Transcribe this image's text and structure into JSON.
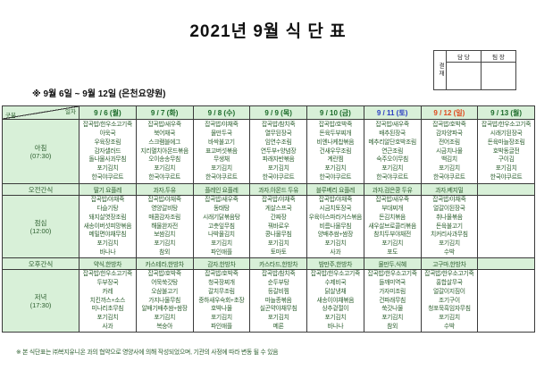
{
  "title": "2021년 9월 식 단 표",
  "subtitle": "※ 9월 6일 ~ 9월 12일 (은천요양원)",
  "approval": {
    "stamp_label": "결재",
    "col1": "담 당",
    "col2": "팀 장"
  },
  "corner": {
    "top": "일자",
    "bottom": "구분"
  },
  "row_labels": {
    "breakfast1": "아침",
    "breakfast2": "(07:30)",
    "am_snack": "오전간식",
    "lunch1": "점심",
    "lunch2": "(12:00)",
    "pm_snack": "오후간식",
    "dinner1": "저녁",
    "dinner2": "(17:30)"
  },
  "colors": {
    "table_tint_green": "#d8f0d8",
    "menu_text_green": "#2e6030",
    "weekday_date": "#1c6b2a",
    "saturday_date": "#2b3fc4",
    "sunday_date": "#e04a1e"
  },
  "days": [
    {
      "date": "9 / 6 (월)",
      "date_color": "#1c6b2a",
      "breakfast": [
        "잡곡밥/한우소고기죽",
        "아욱국",
        "우육장조림",
        "감자샐러드",
        "돌나물사과무침",
        "포기김치",
        "한국야쿠르트"
      ],
      "am_snack": "딸기 요플레",
      "lunch": [
        "잡곡밥/야채죽",
        "다슬기탕",
        "돼지살엿장조림",
        "새송이버섯피망볶음",
        "메밀면야채무침",
        "포기김치",
        "바나나"
      ],
      "pm_snack": "약식,한방차",
      "dinner": [
        "잡곡밥/한우소고기죽",
        "두부장국",
        "카레",
        "치킨까스+소스",
        "미나리초무침",
        "포기김치",
        "사과"
      ]
    },
    {
      "date": "9 / 7 (화)",
      "date_color": "#1c6b2a",
      "breakfast": [
        "잡곡밥/새우죽",
        "북어채국",
        "스크램블에그",
        "지리멸치아몬드볶음",
        "오이송송무침",
        "포기김치",
        "한국야쿠르트"
      ],
      "am_snack": "과자,두유",
      "lunch": [
        "잡곡밥/야채죽",
        "영양갈비탕",
        "매콤감자조림",
        "해물완자전",
        "보쌈김치",
        "포기김치",
        "참외"
      ],
      "pm_snack": "카스테라,한방차",
      "dinner": [
        "잡곡밥/호박죽",
        "어묵쑥갓탕",
        "오삼불고기",
        "가지나물무침",
        "알배기배추쌈+쌈장",
        "포기김치",
        "복숭아"
      ]
    },
    {
      "date": "9 / 8 (수)",
      "date_color": "#1c6b2a",
      "breakfast": [
        "잡곡밥/야채죽",
        "물만두국",
        "바싹불고기",
        "표고버섯볶음",
        "무생채",
        "포기김치",
        "한국야쿠르트"
      ],
      "am_snack": "플레인 요플레",
      "lunch": [
        "잡곡밥/새우죽",
        "동태탕",
        "시래기닭볶음탕",
        "고춧잎무침",
        "나박물김치",
        "포기김치",
        "파인애플"
      ],
      "pm_snack": "감자,한방차",
      "dinner": [
        "잡곡밥/호박죽",
        "청국장찌개",
        "갈치무조림",
        "중하새우숙회+초장",
        "호박나물",
        "포기김치",
        "파인애플"
      ]
    },
    {
      "date": "9 / 9 (목)",
      "date_color": "#1c6b2a",
      "breakfast": [
        "잡곡밥/참치죽",
        "열무된장국",
        "임연수조림",
        "연두부+양념장",
        "파래자반볶음",
        "포기김치",
        "한국야쿠르트"
      ],
      "am_snack": "과자,아몬드 두유",
      "lunch": [
        "잡곡밥/야채죽",
        "게살스프국",
        "간짜장",
        "꿔바로우",
        "콩나물무침",
        "포기김치",
        "토마토"
      ],
      "pm_snack": "카스타드,한방차",
      "dinner": [
        "잡곡밥/참치죽",
        "순두부탕",
        "등갈비찜",
        "마늘종볶음",
        "실곤약야채무침",
        "포기김치",
        "메론"
      ]
    },
    {
      "date": "9 / 10 (금)",
      "date_color": "#1c6b2a",
      "breakfast": [
        "잡곡밥/호박죽",
        "돈육두부찌개",
        "비엔나케찹볶음",
        "건새우무조림",
        "계란찜",
        "포기김치",
        "한국야쿠르트"
      ],
      "am_snack": "블루베리 요플레",
      "lunch": [
        "잡곡밥/야채죽",
        "시금치토장국",
        "우육아스파라거스볶음",
        "비름나물무침",
        "양배추쌈+쌈장",
        "포기김치",
        "사과"
      ],
      "pm_snack": "밤만주,한방차",
      "dinner": [
        "잡곡밥/한우소고기죽",
        "수제비국",
        "닭살냉채",
        "새송이야채볶음",
        "상추겉절이",
        "포기김치",
        "바나나"
      ]
    },
    {
      "date": "9 / 11 (토)",
      "date_color": "#2b3fc4",
      "breakfast": [
        "잡곡밥/새우죽",
        "배추된장국",
        "메추리알단호박조림",
        "연근조림",
        "숙주오이무침",
        "포기김치",
        "한국야쿠르트"
      ],
      "am_snack": "과자,검은콩 두유",
      "lunch": [
        "잡곡밥/새우죽",
        "부대찌개",
        "돈김치볶음",
        "새우살브로콜리볶음",
        "참치두부야채전",
        "포기김치",
        "포도"
      ],
      "pm_snack": "물만두,식혜",
      "dinner": [
        "잡곡밥/한우소고기죽",
        "들깨미역국",
        "가자미조림",
        "건파래무침",
        "쑥갓나물",
        "포기김치",
        "참외"
      ]
    },
    {
      "date": "9 / 12 (일)",
      "date_color": "#e04a1e",
      "breakfast": [
        "잡곡밥/호박죽",
        "감자양파국",
        "전어조림",
        "시금치나물",
        "백김치",
        "포기김치",
        "한국야쿠르트"
      ],
      "am_snack": "과자,베지밀",
      "lunch": [
        "잡곡밥/야채죽",
        "얼갈이된장국",
        "취나물볶음",
        "돈육불고기",
        "치커리사과무침",
        "포기김치",
        "수박"
      ],
      "pm_snack": "고구마,한방차",
      "dinner": [
        "잡곡밥/한우소고기죽",
        "홍합살무국",
        "얼갈이지짐이",
        "조기구이",
        "청포묵흑임자무침",
        "포기김치",
        "수박"
      ]
    },
    {
      "date": "9 / 13 (월)",
      "date_color": "#1c6b2a",
      "breakfast": [
        "잡곡밥/한우소고기죽",
        "시래기된장국",
        "돈육마늘장조림",
        "호박동글전",
        "구이김",
        "포기김치",
        "한국야쿠르트"
      ],
      "am_snack": "",
      "lunch": [],
      "pm_snack": "",
      "dinner": []
    }
  ],
  "footer": "※ 본 식단표는 ㈜복지유니온 과의 협약으로 영양사에 의해 작성되었으며, 기관의 사정에 따라 변동 될 수 있음"
}
